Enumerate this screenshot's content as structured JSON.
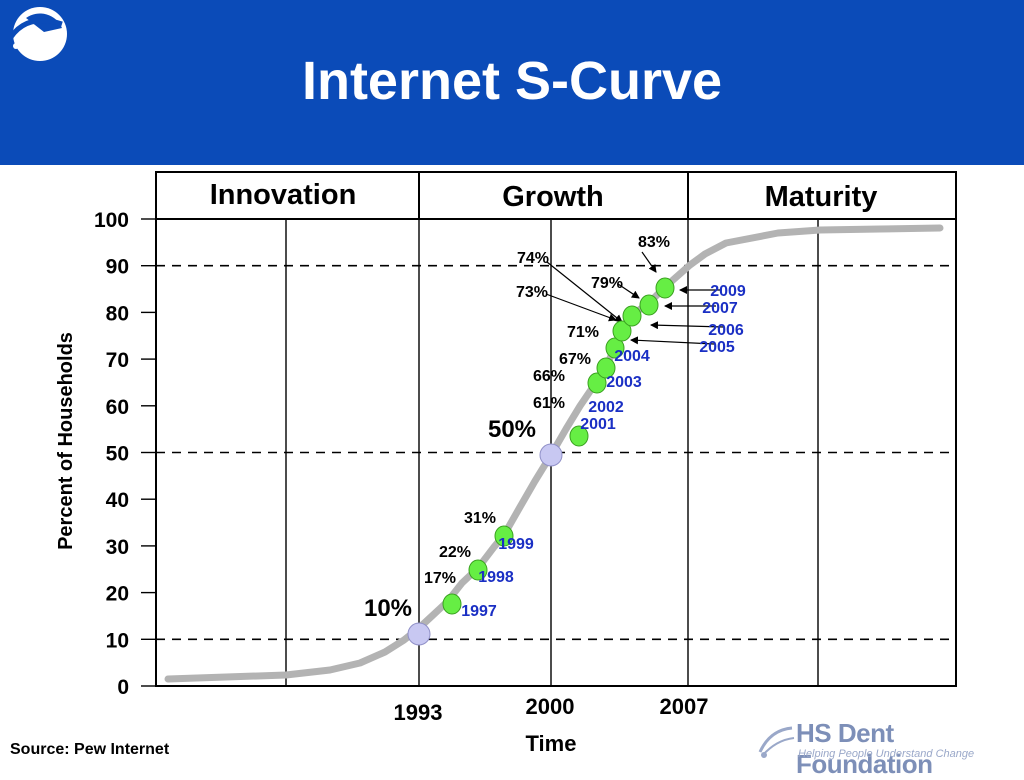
{
  "slide": {
    "title": "Internet S-Curve",
    "source": "Source: Pew Internet",
    "brand_name": "HS Dent Foundation",
    "brand_tagline": "Helping People Understand Change",
    "header_color": "#0b4bb8",
    "logo_icon": "globe-swoosh-icon",
    "brand_icon": "swoosh-logo-icon"
  },
  "chart_data": {
    "type": "line",
    "title": "",
    "xlabel": "Time",
    "ylabel": "Percent of Households",
    "ylim": [
      0,
      100
    ],
    "y_ticks": [
      "0",
      "10",
      "20",
      "30",
      "40",
      "50",
      "60",
      "70",
      "80",
      "90",
      "100"
    ],
    "x_ticks": [
      "1993",
      "2000",
      "2007"
    ],
    "dashed_gridlines": [
      10,
      50,
      90
    ],
    "phases": [
      "Innovation",
      "Growth",
      "Maturity"
    ],
    "curve_color": "#b3b3b3",
    "point_color": "#66ee44",
    "milestone_color": "#c8c8f2",
    "year_label_color": "#1a2fc4",
    "milestones": [
      {
        "x": "1993",
        "y": 10,
        "label": "10%"
      },
      {
        "x": "2000",
        "y": 50,
        "label": "50%"
      }
    ],
    "points": [
      {
        "year": "1997",
        "value": 17,
        "label": "17%"
      },
      {
        "year": "1998",
        "value": 22,
        "label": "22%"
      },
      {
        "year": "1999",
        "value": 31,
        "label": "31%"
      },
      {
        "year": "2001",
        "value": 61,
        "label": "61%"
      },
      {
        "year": "2002",
        "value": 66,
        "label": "66%"
      },
      {
        "year": "2003",
        "value": 67,
        "label": "67%"
      },
      {
        "year": "2004",
        "value": 71,
        "label": "71%"
      },
      {
        "year": "2005",
        "value": 73,
        "label": "73%"
      },
      {
        "year": "2006",
        "value": 74,
        "label": "74%"
      },
      {
        "year": "2007",
        "value": 79,
        "label": "79%"
      },
      {
        "year": "2009",
        "value": 83,
        "label": "83%"
      }
    ]
  }
}
